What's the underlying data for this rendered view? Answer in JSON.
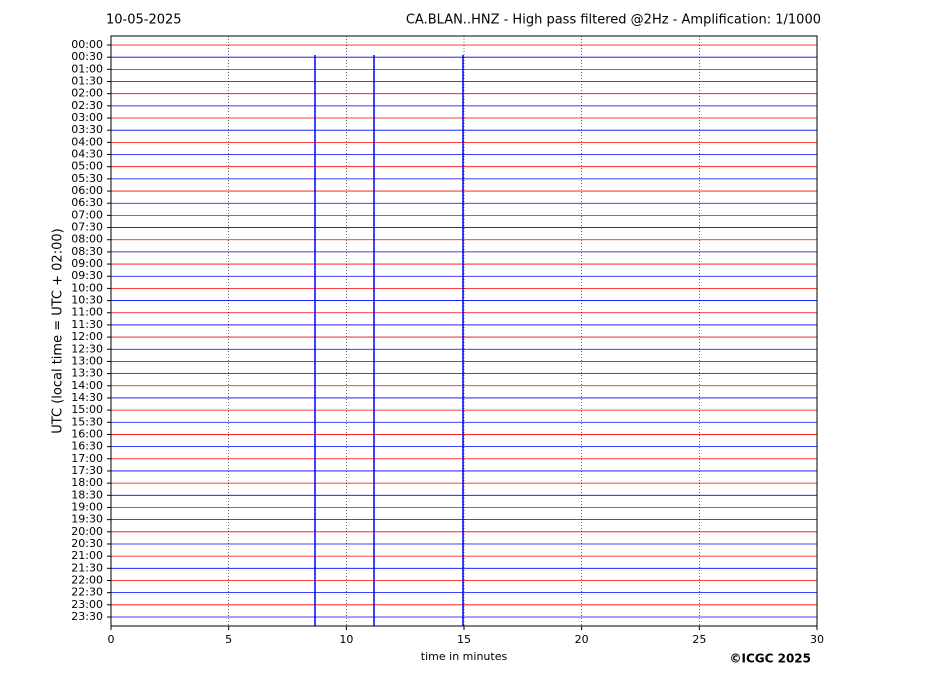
{
  "chart_data": {
    "type": "seismogram",
    "date": "10-05-2025",
    "title": "CA.BLAN..HNZ - High pass filtered @2Hz - Amplification: 1/1000",
    "x_label": "time in minutes",
    "y_label": "UTC (local time = UTC + 02:00)",
    "credit": "©ICGC 2025",
    "categories": [
      "00:00",
      "00:30",
      "01:00",
      "01:30",
      "02:00",
      "02:30",
      "03:00",
      "03:30",
      "04:00",
      "04:30",
      "05:00",
      "05:30",
      "06:00",
      "06:30",
      "07:00",
      "07:30",
      "08:00",
      "08:30",
      "09:00",
      "09:30",
      "10:00",
      "10:30",
      "11:00",
      "11:30",
      "12:00",
      "12:30",
      "13:00",
      "13:30",
      "14:00",
      "14:30",
      "15:00",
      "15:30",
      "16:00",
      "16:30",
      "17:00",
      "17:30",
      "18:00",
      "18:30",
      "19:00",
      "19:30",
      "20:00",
      "20:30",
      "21:00",
      "21:30",
      "22:00",
      "22:30",
      "23:00",
      "23:30"
    ],
    "trace_colors": [
      "#ff0000",
      "#0000ff"
    ],
    "xlim": [
      0,
      30
    ],
    "xticks": [
      0,
      5,
      10,
      15,
      20,
      25,
      30
    ],
    "grid": true
  }
}
